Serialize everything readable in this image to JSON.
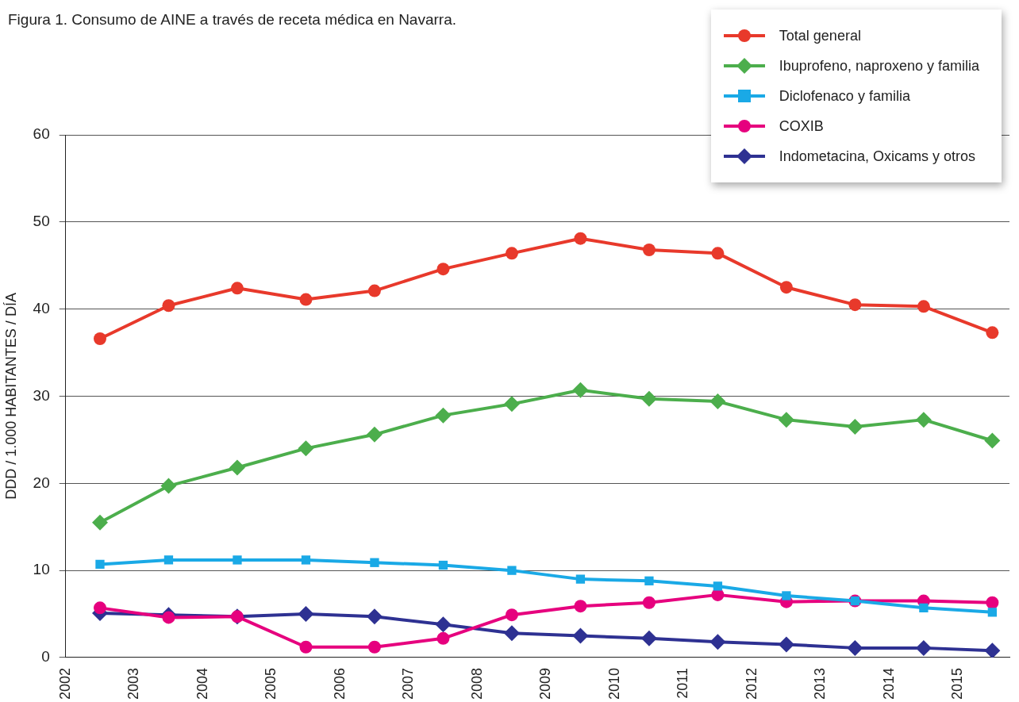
{
  "chart_data": {
    "type": "line",
    "title": "Figura 1. Consumo de AINE a través de receta médica en Navarra.",
    "ylabel": "DDD / 1.000 HABITANTES / DÍA",
    "x": [
      2002.5,
      2003.5,
      2004.5,
      2005.5,
      2006.5,
      2007.5,
      2008.5,
      2009.5,
      2010.5,
      2011.5,
      2012.5,
      2013.5,
      2014.5,
      2015.5
    ],
    "xlim": [
      2002,
      2015.75
    ],
    "xticks": [
      2002,
      2003,
      2004,
      2005,
      2006,
      2007,
      2008,
      2009,
      2010,
      2011,
      2012,
      2013,
      2014,
      2015
    ],
    "ylim": [
      0,
      60
    ],
    "yticks": [
      0,
      10,
      20,
      30,
      40,
      50,
      60
    ],
    "grid": "y",
    "legend": "top right",
    "line_style": "solid",
    "series": [
      {
        "name": "Total general",
        "color": "#e8392b",
        "marker": "circle",
        "values": [
          36.6,
          40.4,
          42.4,
          41.1,
          42.1,
          44.6,
          46.4,
          48.1,
          46.8,
          46.4,
          42.5,
          40.5,
          40.3,
          37.3
        ]
      },
      {
        "name": "Ibuprofeno, naproxeno y familia",
        "color": "#4cae4c",
        "marker": "diamond",
        "values": [
          15.5,
          19.7,
          21.8,
          24.0,
          25.6,
          27.8,
          29.1,
          30.7,
          29.7,
          29.4,
          27.3,
          26.5,
          27.3,
          24.9
        ]
      },
      {
        "name": "Diclofenaco y familia",
        "color": "#1aa9e6",
        "marker": "square",
        "values": [
          10.7,
          11.2,
          11.2,
          11.2,
          10.9,
          10.6,
          10.0,
          9.0,
          8.8,
          8.2,
          7.1,
          6.5,
          5.7,
          5.2
        ]
      },
      {
        "name": "COXIB",
        "color": "#e6007e",
        "marker": "circle",
        "values": [
          5.7,
          4.6,
          4.7,
          1.2,
          1.2,
          2.2,
          4.9,
          5.9,
          6.3,
          7.2,
          6.4,
          6.5,
          6.5,
          6.3
        ]
      },
      {
        "name": "Indometacina, Oxicams y otros",
        "color": "#2e3192",
        "marker": "diamond",
        "values": [
          5.1,
          4.9,
          4.7,
          5.0,
          4.7,
          3.8,
          2.8,
          2.5,
          2.2,
          1.8,
          1.5,
          1.1,
          1.1,
          0.8
        ]
      }
    ]
  }
}
